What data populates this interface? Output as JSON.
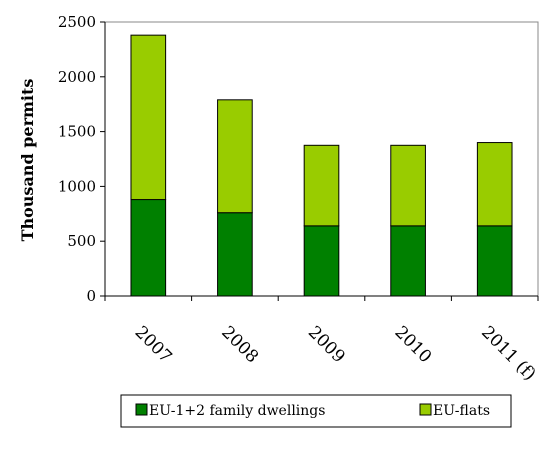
{
  "chart_data": {
    "type": "bar",
    "stacked": true,
    "ylabel": "Thousand permits",
    "xlabel": "",
    "ylim": [
      0,
      2500
    ],
    "yticks": [
      0,
      500,
      1000,
      1500,
      2000,
      2500
    ],
    "categories": [
      "2007",
      "2008",
      "2009",
      "2010",
      "2011 (f)"
    ],
    "series": [
      {
        "name": "EU-1+2 family dwellings",
        "color": "#008000",
        "values": [
          880,
          760,
          640,
          640,
          640
        ]
      },
      {
        "name": "EU-flats",
        "color": "#99cc00",
        "values": [
          1500,
          1030,
          735,
          735,
          760
        ]
      }
    ],
    "grid": false,
    "legend": "bottom"
  }
}
